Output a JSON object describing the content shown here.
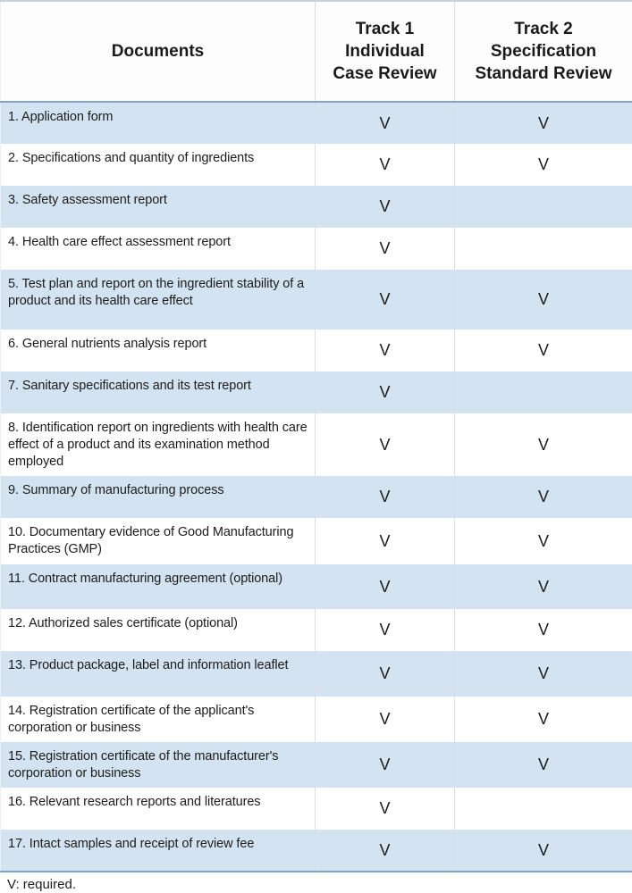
{
  "table": {
    "columns": [
      {
        "label": "Documents"
      },
      {
        "label": "Track 1\nIndividual\nCase Review"
      },
      {
        "label": "Track 2\nSpecification\nStandard Review"
      }
    ],
    "rows": [
      {
        "doc": "1. Application form",
        "track1": "V",
        "track2": "V"
      },
      {
        "doc": "2. Specifications and quantity of ingredients",
        "track1": "V",
        "track2": "V"
      },
      {
        "doc": "3. Safety assessment report",
        "track1": "V",
        "track2": ""
      },
      {
        "doc": "4. Health care effect assessment report",
        "track1": "V",
        "track2": ""
      },
      {
        "doc": "5. Test plan and report on the ingredient stability of a product and its health care effect",
        "track1": "V",
        "track2": "V"
      },
      {
        "doc": "6. General nutrients analysis report",
        "track1": "V",
        "track2": "V"
      },
      {
        "doc": "7. Sanitary specifications and its test report",
        "track1": "V",
        "track2": ""
      },
      {
        "doc": "8. Identification report on ingredients with health care effect of a product and its examination method employed",
        "track1": "V",
        "track2": "V"
      },
      {
        "doc": "9. Summary of manufacturing process",
        "track1": "V",
        "track2": "V"
      },
      {
        "doc": "10. Documentary evidence of Good Manufacturing Practices (GMP)",
        "track1": "V",
        "track2": "V"
      },
      {
        "doc": "11. Contract manufacturing agreement (optional)",
        "track1": "V",
        "track2": "V"
      },
      {
        "doc": "12. Authorized sales certificate (optional)",
        "track1": "V",
        "track2": "V"
      },
      {
        "doc": "13. Product package, label and information leaflet",
        "track1": "V",
        "track2": "V"
      },
      {
        "doc": "14. Registration certificate of the applicant's corporation or business",
        "track1": "V",
        "track2": "V"
      },
      {
        "doc": "15. Registration certificate of the manufacturer's corporation or business",
        "track1": "V",
        "track2": "V"
      },
      {
        "doc": "16. Relevant research reports and literatures",
        "track1": "V",
        "track2": ""
      },
      {
        "doc": "17. Intact samples and receipt of review fee",
        "track1": "V",
        "track2": "V"
      }
    ],
    "footnote": "V: required."
  },
  "colors": {
    "row_alternate_blue": "#d4e3f1",
    "strong_border_blue": "#84a3c6",
    "light_grid_line": "#d9dee4",
    "top_border": "#c7d2dd",
    "text": "#1c1c1c"
  }
}
